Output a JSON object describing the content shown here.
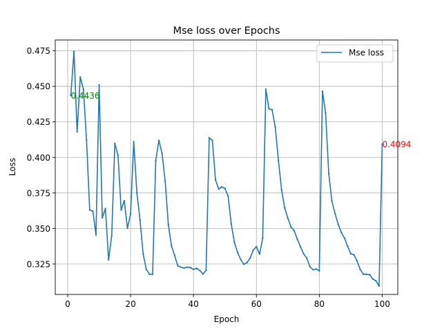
{
  "chart_data": {
    "type": "line",
    "title": "Mse loss over Epochs",
    "xlabel": "Epoch",
    "ylabel": "Loss",
    "xlim": [
      -3.95,
      104.95
    ],
    "ylim": [
      0.3036,
      0.4826
    ],
    "xticks": [
      0,
      20,
      40,
      60,
      80,
      100
    ],
    "yticks": [
      0.325,
      0.35,
      0.375,
      0.4,
      0.425,
      0.45,
      0.475
    ],
    "xtick_labels": [
      "0",
      "20",
      "40",
      "60",
      "80",
      "100"
    ],
    "ytick_labels": [
      "0.325",
      "0.350",
      "0.375",
      "0.400",
      "0.425",
      "0.450",
      "0.475"
    ],
    "grid": true,
    "legend": {
      "placement": "top-right",
      "entries": [
        "Mse loss"
      ]
    },
    "series": [
      {
        "name": "Mse loss",
        "color": "#1f77b4",
        "x": [
          1,
          2,
          3,
          4,
          5,
          6,
          7,
          8,
          9,
          10,
          11,
          12,
          13,
          14,
          15,
          16,
          17,
          18,
          19,
          20,
          21,
          22,
          23,
          24,
          25,
          26,
          27,
          28,
          29,
          30,
          31,
          32,
          33,
          34,
          35,
          36,
          37,
          38,
          39,
          40,
          41,
          42,
          43,
          44,
          45,
          46,
          47,
          48,
          49,
          50,
          51,
          52,
          53,
          54,
          55,
          56,
          57,
          58,
          59,
          60,
          61,
          62,
          63,
          64,
          65,
          66,
          67,
          68,
          69,
          70,
          71,
          72,
          73,
          74,
          75,
          76,
          77,
          78,
          79,
          80,
          81,
          82,
          83,
          84,
          85,
          86,
          87,
          88,
          89,
          90,
          91,
          92,
          93,
          94,
          95,
          96,
          97,
          98,
          99,
          100
        ],
        "values": [
          0.4436,
          0.4745,
          0.418,
          0.4565,
          0.448,
          0.412,
          0.363,
          0.3622,
          0.3455,
          0.451,
          0.3575,
          0.364,
          0.328,
          0.345,
          0.4098,
          0.4015,
          0.363,
          0.3695,
          0.3502,
          0.3602,
          0.411,
          0.3752,
          0.356,
          0.332,
          0.3212,
          0.3178,
          0.3178,
          0.3978,
          0.412,
          0.4028,
          0.3832,
          0.3528,
          0.3378,
          0.331,
          0.3238,
          0.3228,
          0.3222,
          0.3228,
          0.3225,
          0.3212,
          0.322,
          0.3205,
          0.318,
          0.3205,
          0.4138,
          0.412,
          0.3842,
          0.3778,
          0.3792,
          0.3782,
          0.3728,
          0.3532,
          0.3402,
          0.3332,
          0.3282,
          0.3248,
          0.326,
          0.3292,
          0.3348,
          0.3372,
          0.332,
          0.3432,
          0.448,
          0.4342,
          0.4335,
          0.4212,
          0.3978,
          0.3772,
          0.3645,
          0.3572,
          0.351,
          0.3485,
          0.3425,
          0.3372,
          0.3322,
          0.3292,
          0.3232,
          0.321,
          0.3215,
          0.3202,
          0.4465,
          0.4312,
          0.3885,
          0.3692,
          0.3605,
          0.353,
          0.3472,
          0.3432,
          0.3375,
          0.3322,
          0.3315,
          0.3272,
          0.3212,
          0.3178,
          0.3178,
          0.3175,
          0.3145,
          0.3132,
          0.3095,
          0.4094
        ]
      }
    ],
    "annotations": [
      {
        "text": "0.4436",
        "x": 1,
        "y": 0.4436,
        "color": "#008000"
      },
      {
        "text": "0.4094",
        "x": 100,
        "y": 0.4094,
        "color": "#ff0000"
      }
    ]
  }
}
